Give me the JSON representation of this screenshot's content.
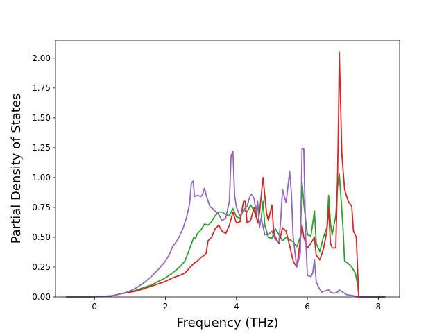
{
  "chart_data": {
    "type": "line",
    "title": "",
    "xlabel": "Frequency (THz)",
    "ylabel": "Partial Density of States",
    "xlim": [
      -1.1,
      8.6
    ],
    "ylim": [
      0.0,
      2.15
    ],
    "xticks": [
      0,
      2,
      4,
      6,
      8
    ],
    "xtick_labels": [
      "0",
      "2",
      "4",
      "6",
      "8"
    ],
    "yticks": [
      0.0,
      0.25,
      0.5,
      0.75,
      1.0,
      1.25,
      1.5,
      1.75,
      2.0
    ],
    "ytick_labels": [
      "0.00",
      "0.25",
      "0.50",
      "0.75",
      "1.00",
      "1.25",
      "1.50",
      "1.75",
      "2.00"
    ],
    "grid": false,
    "legend": false,
    "series": [
      {
        "color": "#2ca02c",
        "points": [
          [
            -0.8,
            0
          ],
          [
            -0.2,
            0
          ],
          [
            0.2,
            0.003
          ],
          [
            0.5,
            0.01
          ],
          [
            0.8,
            0.03
          ],
          [
            1.0,
            0.04
          ],
          [
            1.2,
            0.06
          ],
          [
            1.4,
            0.08
          ],
          [
            1.6,
            0.1
          ],
          [
            1.8,
            0.13
          ],
          [
            2.0,
            0.16
          ],
          [
            2.2,
            0.2
          ],
          [
            2.4,
            0.25
          ],
          [
            2.55,
            0.3
          ],
          [
            2.65,
            0.38
          ],
          [
            2.75,
            0.46
          ],
          [
            2.8,
            0.5
          ],
          [
            2.85,
            0.49
          ],
          [
            2.9,
            0.53
          ],
          [
            3.0,
            0.56
          ],
          [
            3.1,
            0.61
          ],
          [
            3.2,
            0.6
          ],
          [
            3.3,
            0.63
          ],
          [
            3.4,
            0.68
          ],
          [
            3.5,
            0.71
          ],
          [
            3.6,
            0.71
          ],
          [
            3.7,
            0.69
          ],
          [
            3.8,
            0.68
          ],
          [
            3.9,
            0.74
          ],
          [
            4.0,
            0.67
          ],
          [
            4.1,
            0.66
          ],
          [
            4.2,
            0.73
          ],
          [
            4.3,
            0.71
          ],
          [
            4.4,
            0.77
          ],
          [
            4.5,
            0.72
          ],
          [
            4.55,
            0.67
          ],
          [
            4.6,
            0.78
          ],
          [
            4.65,
            0.59
          ],
          [
            4.7,
            0.66
          ],
          [
            4.75,
            0.8
          ],
          [
            4.8,
            0.6
          ],
          [
            4.9,
            0.5
          ],
          [
            5.0,
            0.49
          ],
          [
            5.1,
            0.57
          ],
          [
            5.2,
            0.52
          ],
          [
            5.3,
            0.47
          ],
          [
            5.4,
            0.5
          ],
          [
            5.5,
            0.48
          ],
          [
            5.6,
            0.46
          ],
          [
            5.7,
            0.42
          ],
          [
            5.8,
            0.5
          ],
          [
            5.85,
            0.96
          ],
          [
            5.9,
            0.78
          ],
          [
            6.0,
            0.52
          ],
          [
            6.1,
            0.51
          ],
          [
            6.2,
            0.72
          ],
          [
            6.25,
            0.45
          ],
          [
            6.35,
            0.38
          ],
          [
            6.45,
            0.5
          ],
          [
            6.55,
            0.58
          ],
          [
            6.6,
            0.85
          ],
          [
            6.65,
            0.62
          ],
          [
            6.7,
            0.52
          ],
          [
            6.8,
            0.68
          ],
          [
            6.85,
            0.92
          ],
          [
            6.9,
            1.03
          ],
          [
            6.95,
            0.82
          ],
          [
            7.0,
            0.6
          ],
          [
            7.05,
            0.3
          ],
          [
            7.15,
            0.28
          ],
          [
            7.25,
            0.25
          ],
          [
            7.35,
            0.2
          ],
          [
            7.42,
            0.1
          ],
          [
            7.45,
            0.0
          ],
          [
            7.5,
            0
          ],
          [
            8.2,
            0
          ]
        ]
      },
      {
        "color": "#d62728",
        "points": [
          [
            -0.8,
            0
          ],
          [
            -0.2,
            0
          ],
          [
            0.2,
            0.003
          ],
          [
            0.5,
            0.01
          ],
          [
            0.8,
            0.03
          ],
          [
            1.0,
            0.04
          ],
          [
            1.2,
            0.05
          ],
          [
            1.4,
            0.07
          ],
          [
            1.6,
            0.09
          ],
          [
            1.8,
            0.11
          ],
          [
            2.0,
            0.13
          ],
          [
            2.2,
            0.16
          ],
          [
            2.4,
            0.18
          ],
          [
            2.55,
            0.2
          ],
          [
            2.7,
            0.25
          ],
          [
            2.8,
            0.28
          ],
          [
            2.9,
            0.3
          ],
          [
            3.0,
            0.33
          ],
          [
            3.1,
            0.35
          ],
          [
            3.15,
            0.37
          ],
          [
            3.2,
            0.47
          ],
          [
            3.3,
            0.5
          ],
          [
            3.4,
            0.57
          ],
          [
            3.5,
            0.6
          ],
          [
            3.6,
            0.55
          ],
          [
            3.7,
            0.53
          ],
          [
            3.8,
            0.6
          ],
          [
            3.9,
            0.71
          ],
          [
            4.0,
            0.62
          ],
          [
            4.1,
            0.63
          ],
          [
            4.2,
            0.8
          ],
          [
            4.25,
            0.8
          ],
          [
            4.3,
            0.62
          ],
          [
            4.4,
            0.64
          ],
          [
            4.5,
            0.75
          ],
          [
            4.6,
            0.62
          ],
          [
            4.65,
            0.7
          ],
          [
            4.7,
            0.85
          ],
          [
            4.75,
            1.0
          ],
          [
            4.8,
            0.85
          ],
          [
            4.85,
            0.7
          ],
          [
            4.9,
            0.64
          ],
          [
            5.0,
            0.77
          ],
          [
            5.05,
            0.55
          ],
          [
            5.1,
            0.5
          ],
          [
            5.2,
            0.45
          ],
          [
            5.3,
            0.58
          ],
          [
            5.4,
            0.55
          ],
          [
            5.5,
            0.43
          ],
          [
            5.6,
            0.3
          ],
          [
            5.7,
            0.25
          ],
          [
            5.75,
            0.35
          ],
          [
            5.8,
            0.48
          ],
          [
            5.85,
            0.6
          ],
          [
            5.9,
            0.5
          ],
          [
            6.0,
            0.41
          ],
          [
            6.1,
            0.45
          ],
          [
            6.2,
            0.5
          ],
          [
            6.25,
            0.35
          ],
          [
            6.35,
            0.31
          ],
          [
            6.45,
            0.4
          ],
          [
            6.55,
            0.55
          ],
          [
            6.6,
            0.75
          ],
          [
            6.65,
            0.45
          ],
          [
            6.7,
            0.41
          ],
          [
            6.8,
            0.41
          ],
          [
            6.85,
            1.0
          ],
          [
            6.88,
            1.5
          ],
          [
            6.9,
            2.05
          ],
          [
            6.93,
            1.7
          ],
          [
            6.97,
            1.2
          ],
          [
            7.05,
            0.9
          ],
          [
            7.15,
            0.8
          ],
          [
            7.25,
            0.76
          ],
          [
            7.3,
            0.55
          ],
          [
            7.38,
            0.5
          ],
          [
            7.42,
            0.2
          ],
          [
            7.45,
            0.0
          ],
          [
            7.5,
            0
          ],
          [
            8.2,
            0
          ]
        ]
      },
      {
        "color": "#9467bd",
        "points": [
          [
            -0.8,
            0
          ],
          [
            -0.2,
            0
          ],
          [
            0.2,
            0.003
          ],
          [
            0.5,
            0.01
          ],
          [
            0.8,
            0.03
          ],
          [
            1.0,
            0.05
          ],
          [
            1.2,
            0.08
          ],
          [
            1.4,
            0.12
          ],
          [
            1.6,
            0.17
          ],
          [
            1.8,
            0.23
          ],
          [
            2.0,
            0.3
          ],
          [
            2.1,
            0.35
          ],
          [
            2.2,
            0.42
          ],
          [
            2.3,
            0.46
          ],
          [
            2.4,
            0.51
          ],
          [
            2.5,
            0.58
          ],
          [
            2.6,
            0.67
          ],
          [
            2.68,
            0.78
          ],
          [
            2.73,
            0.95
          ],
          [
            2.78,
            0.97
          ],
          [
            2.82,
            0.84
          ],
          [
            2.9,
            0.85
          ],
          [
            3.0,
            0.84
          ],
          [
            3.05,
            0.86
          ],
          [
            3.1,
            0.91
          ],
          [
            3.15,
            0.85
          ],
          [
            3.25,
            0.76
          ],
          [
            3.4,
            0.72
          ],
          [
            3.5,
            0.69
          ],
          [
            3.6,
            0.64
          ],
          [
            3.7,
            0.66
          ],
          [
            3.8,
            0.8
          ],
          [
            3.85,
            1.18
          ],
          [
            3.9,
            1.22
          ],
          [
            3.95,
            0.85
          ],
          [
            4.0,
            0.75
          ],
          [
            4.1,
            0.68
          ],
          [
            4.2,
            0.73
          ],
          [
            4.3,
            0.76
          ],
          [
            4.4,
            0.86
          ],
          [
            4.45,
            0.85
          ],
          [
            4.5,
            0.82
          ],
          [
            4.55,
            0.72
          ],
          [
            4.6,
            0.8
          ],
          [
            4.65,
            0.58
          ],
          [
            4.7,
            0.66
          ],
          [
            4.8,
            0.52
          ],
          [
            4.9,
            0.52
          ],
          [
            5.0,
            0.55
          ],
          [
            5.1,
            0.48
          ],
          [
            5.2,
            0.46
          ],
          [
            5.25,
            0.65
          ],
          [
            5.3,
            0.9
          ],
          [
            5.35,
            0.84
          ],
          [
            5.4,
            0.79
          ],
          [
            5.5,
            1.05
          ],
          [
            5.55,
            0.87
          ],
          [
            5.6,
            0.5
          ],
          [
            5.7,
            0.25
          ],
          [
            5.8,
            0.36
          ],
          [
            5.85,
            1.24
          ],
          [
            5.9,
            1.24
          ],
          [
            5.95,
            0.52
          ],
          [
            6.0,
            0.18
          ],
          [
            6.1,
            0.17
          ],
          [
            6.15,
            0.2
          ],
          [
            6.2,
            0.31
          ],
          [
            6.25,
            0.13
          ],
          [
            6.3,
            0.09
          ],
          [
            6.4,
            0.04
          ],
          [
            6.6,
            0.06
          ],
          [
            6.65,
            0.04
          ],
          [
            6.75,
            0.03
          ],
          [
            6.85,
            0.04
          ],
          [
            6.9,
            0.06
          ],
          [
            7.0,
            0.04
          ],
          [
            7.1,
            0.02
          ],
          [
            7.3,
            0.01
          ],
          [
            7.42,
            0.0
          ],
          [
            7.5,
            0
          ],
          [
            8.2,
            0
          ]
        ]
      }
    ]
  }
}
